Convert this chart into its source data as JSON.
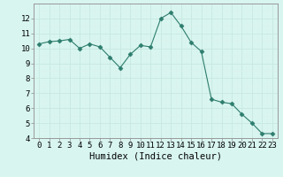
{
  "x": [
    0,
    1,
    2,
    3,
    4,
    5,
    6,
    7,
    8,
    9,
    10,
    11,
    12,
    13,
    14,
    15,
    16,
    17,
    18,
    19,
    20,
    21,
    22,
    23
  ],
  "y": [
    10.3,
    10.45,
    10.5,
    10.6,
    10.0,
    10.3,
    10.1,
    9.4,
    8.7,
    9.6,
    10.2,
    10.1,
    12.0,
    12.4,
    11.5,
    10.4,
    9.8,
    6.6,
    6.4,
    6.3,
    5.6,
    5.0,
    4.3,
    4.3
  ],
  "line_color": "#2d7d6d",
  "marker": "D",
  "marker_size": 2.5,
  "bg_color": "#d8f5f0",
  "grid_color_major": "#c8e8e0",
  "grid_color_minor": "#ddf0ec",
  "xlabel": "Humidex (Indice chaleur)",
  "xlim": [
    -0.5,
    23.5
  ],
  "ylim": [
    4,
    13
  ],
  "yticks": [
    4,
    5,
    6,
    7,
    8,
    9,
    10,
    11,
    12
  ],
  "tick_fontsize": 6.5,
  "xlabel_fontsize": 7.5
}
